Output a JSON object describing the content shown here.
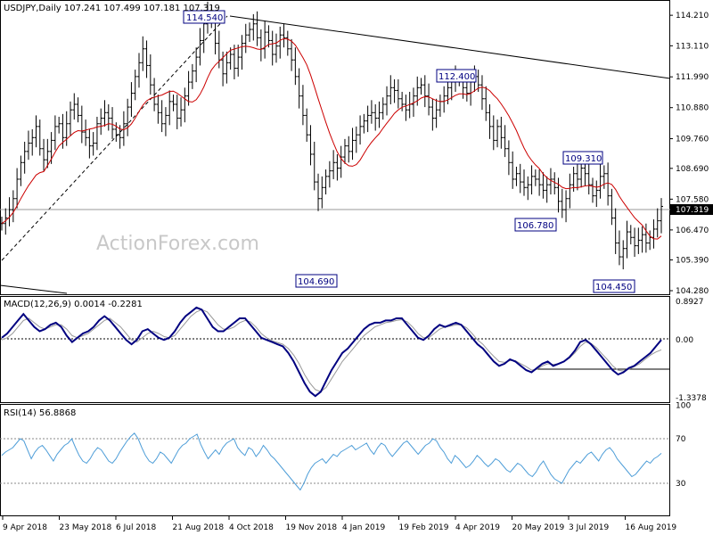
{
  "chart_data": {
    "type": "candlestick",
    "symbol": "USDJPY",
    "timeframe": "Daily",
    "header_text": "USDJPY,Daily  107.241 107.499 107.181 107.319",
    "ohlc": {
      "open": 107.241,
      "high": 107.499,
      "low": 107.181,
      "close": 107.319
    },
    "watermark": "ActionForex.com",
    "colors": {
      "price": "#000000",
      "ma": "#cc0000",
      "macd": "#000080",
      "signal": "#999999",
      "rsi": "#4f9ed8",
      "label_border": "#000080"
    },
    "x_ticks": [
      "9 Apr 2018",
      "23 May 2018",
      "6 Jul 2018",
      "21 Aug 2018",
      "4 Oct 2018",
      "19 Nov 2018",
      "4 Jan 2019",
      "19 Feb 2019",
      "4 Apr 2019",
      "20 May 2019",
      "3 Jul 2019",
      "16 Aug 2019"
    ],
    "price_panel": {
      "ylim": [
        104.28,
        114.6
      ],
      "y_ticks": [
        "114.210",
        "113.110",
        "111.990",
        "110.880",
        "109.760",
        "108.690",
        "107.580",
        "106.470",
        "105.390",
        "104.280"
      ],
      "current_price_label": "107.319",
      "annotations": [
        "114.540",
        "112.400",
        "109.310",
        "106.780",
        "104.690",
        "104.450"
      ],
      "closes": [
        106.7,
        106.9,
        107.2,
        107.6,
        108.3,
        108.9,
        109.3,
        109.6,
        109.8,
        110.2,
        109.4,
        109.0,
        109.3,
        109.7,
        110.2,
        110.3,
        109.8,
        110.3,
        110.8,
        111.0,
        110.6,
        110.0,
        109.8,
        109.5,
        109.6,
        110.3,
        110.5,
        110.7,
        110.5,
        110.1,
        109.9,
        109.8,
        110.3,
        110.9,
        111.4,
        112.0,
        112.5,
        113.0,
        112.4,
        111.7,
        111.0,
        110.7,
        110.3,
        110.6,
        111.1,
        111.0,
        110.5,
        110.8,
        111.3,
        111.8,
        112.2,
        112.7,
        113.3,
        113.9,
        114.3,
        114.0,
        113.2,
        112.6,
        112.1,
        112.5,
        112.8,
        112.3,
        112.7,
        113.2,
        113.5,
        113.7,
        113.9,
        113.4,
        113.0,
        113.6,
        113.3,
        112.8,
        113.1,
        113.5,
        113.4,
        113.0,
        112.6,
        112.0,
        111.3,
        110.6,
        109.9,
        109.2,
        108.2,
        107.6,
        108.0,
        108.4,
        108.6,
        108.9,
        108.7,
        109.1,
        109.5,
        109.3,
        109.7,
        109.9,
        110.2,
        110.4,
        110.6,
        110.7,
        110.5,
        110.7,
        111.0,
        111.3,
        111.6,
        111.5,
        111.2,
        111.0,
        110.8,
        111.0,
        111.3,
        111.6,
        111.7,
        111.3,
        110.9,
        110.5,
        110.8,
        111.1,
        111.3,
        111.6,
        111.8,
        112.0,
        111.9,
        111.6,
        111.4,
        111.8,
        112.0,
        111.7,
        111.2,
        110.7,
        110.2,
        109.7,
        110.2,
        109.8,
        109.4,
        108.9,
        108.3,
        108.5,
        108.2,
        108.0,
        108.1,
        108.4,
        108.3,
        108.1,
        107.9,
        108.1,
        108.3,
        108.0,
        107.5,
        107.2,
        107.6,
        108.1,
        108.5,
        108.3,
        108.7,
        108.5,
        108.1,
        107.7,
        107.9,
        108.4,
        108.5,
        107.7,
        106.9,
        106.0,
        105.5,
        105.8,
        106.4,
        106.2,
        105.9,
        106.1,
        106.3,
        106.0,
        106.2,
        106.5,
        106.8,
        107.319
      ]
    },
    "macd_panel": {
      "label": "MACD(12,26,9) 0.0014 -0.2281",
      "ylim": [
        -1.3378,
        0.8927
      ],
      "y_ticks": [
        "0.8927",
        "0.00",
        "-1.3378"
      ],
      "macd": [
        0.05,
        0.15,
        0.3,
        0.45,
        0.6,
        0.45,
        0.3,
        0.2,
        0.25,
        0.35,
        0.4,
        0.3,
        0.1,
        -0.05,
        0.05,
        0.15,
        0.2,
        0.3,
        0.45,
        0.55,
        0.45,
        0.3,
        0.15,
        0.0,
        -0.1,
        0.0,
        0.2,
        0.25,
        0.15,
        0.05,
        0.0,
        0.05,
        0.2,
        0.4,
        0.55,
        0.65,
        0.75,
        0.7,
        0.5,
        0.3,
        0.2,
        0.2,
        0.3,
        0.4,
        0.5,
        0.5,
        0.35,
        0.2,
        0.05,
        0.0,
        -0.05,
        -0.1,
        -0.15,
        -0.3,
        -0.5,
        -0.75,
        -1.0,
        -1.2,
        -1.3,
        -1.2,
        -0.95,
        -0.7,
        -0.5,
        -0.3,
        -0.2,
        -0.05,
        0.1,
        0.25,
        0.35,
        0.4,
        0.4,
        0.45,
        0.45,
        0.5,
        0.5,
        0.35,
        0.2,
        0.05,
        0.0,
        0.1,
        0.25,
        0.35,
        0.3,
        0.35,
        0.4,
        0.35,
        0.2,
        0.05,
        -0.1,
        -0.2,
        -0.35,
        -0.5,
        -0.6,
        -0.55,
        -0.45,
        -0.5,
        -0.6,
        -0.7,
        -0.75,
        -0.65,
        -0.55,
        -0.5,
        -0.6,
        -0.55,
        -0.5,
        -0.4,
        -0.25,
        -0.05,
        0.0,
        -0.1,
        -0.25,
        -0.4,
        -0.55,
        -0.7,
        -0.8,
        -0.75,
        -0.65,
        -0.6,
        -0.5,
        -0.4,
        -0.3,
        -0.15,
        0.0014
      ],
      "signal": [
        0.0,
        0.05,
        0.15,
        0.3,
        0.45,
        0.5,
        0.4,
        0.3,
        0.25,
        0.3,
        0.35,
        0.35,
        0.25,
        0.1,
        0.05,
        0.1,
        0.15,
        0.25,
        0.35,
        0.45,
        0.5,
        0.4,
        0.3,
        0.15,
        0.0,
        -0.05,
        0.05,
        0.15,
        0.2,
        0.15,
        0.08,
        0.05,
        0.1,
        0.25,
        0.4,
        0.55,
        0.65,
        0.7,
        0.65,
        0.5,
        0.35,
        0.25,
        0.25,
        0.3,
        0.4,
        0.45,
        0.42,
        0.3,
        0.15,
        0.05,
        -0.02,
        -0.06,
        -0.1,
        -0.2,
        -0.35,
        -0.55,
        -0.8,
        -1.0,
        -1.15,
        -1.2,
        -1.1,
        -0.9,
        -0.7,
        -0.5,
        -0.35,
        -0.2,
        -0.05,
        0.1,
        0.2,
        0.3,
        0.35,
        0.4,
        0.42,
        0.45,
        0.47,
        0.42,
        0.3,
        0.15,
        0.05,
        0.05,
        0.15,
        0.25,
        0.3,
        0.32,
        0.35,
        0.35,
        0.28,
        0.15,
        0.0,
        -0.1,
        -0.25,
        -0.38,
        -0.5,
        -0.52,
        -0.48,
        -0.48,
        -0.55,
        -0.62,
        -0.7,
        -0.68,
        -0.6,
        -0.55,
        -0.57,
        -0.55,
        -0.5,
        -0.42,
        -0.3,
        -0.15,
        -0.05,
        -0.08,
        -0.18,
        -0.32,
        -0.45,
        -0.6,
        -0.7,
        -0.72,
        -0.68,
        -0.62,
        -0.55,
        -0.45,
        -0.35,
        -0.28,
        -0.2281
      ]
    },
    "rsi_panel": {
      "label": "RSI(14) 56.8868",
      "ylim": [
        0,
        100
      ],
      "y_ticks": [
        "100",
        "70",
        "30",
        "0"
      ],
      "values": [
        55,
        58,
        60,
        62,
        66,
        70,
        68,
        60,
        52,
        58,
        62,
        64,
        60,
        55,
        50,
        56,
        60,
        64,
        66,
        70,
        62,
        55,
        50,
        48,
        52,
        58,
        62,
        60,
        55,
        50,
        48,
        52,
        58,
        63,
        68,
        72,
        75,
        70,
        62,
        55,
        50,
        48,
        52,
        58,
        56,
        52,
        48,
        54,
        60,
        64,
        66,
        70,
        72,
        74,
        65,
        58,
        52,
        56,
        60,
        56,
        62,
        66,
        68,
        70,
        62,
        58,
        55,
        62,
        60,
        54,
        58,
        64,
        60,
        55,
        52,
        48,
        44,
        40,
        36,
        32,
        28,
        24,
        30,
        38,
        44,
        48,
        50,
        52,
        48,
        52,
        56,
        54,
        58,
        60,
        62,
        64,
        60,
        62,
        64,
        66,
        60,
        56,
        62,
        66,
        64,
        58,
        54,
        58,
        62,
        66,
        68,
        64,
        60,
        56,
        60,
        64,
        66,
        70,
        68,
        62,
        58,
        52,
        48,
        55,
        52,
        48,
        44,
        46,
        50,
        55,
        52,
        48,
        45,
        48,
        52,
        50,
        46,
        42,
        40,
        44,
        48,
        46,
        42,
        38,
        36,
        40,
        46,
        50,
        44,
        38,
        34,
        32,
        30,
        36,
        42,
        46,
        50,
        48,
        52,
        56,
        58,
        54,
        50,
        56,
        60,
        62,
        58,
        52,
        48,
        44,
        40,
        36,
        38,
        42,
        46,
        50,
        48,
        52,
        54,
        56.8868
      ]
    }
  }
}
